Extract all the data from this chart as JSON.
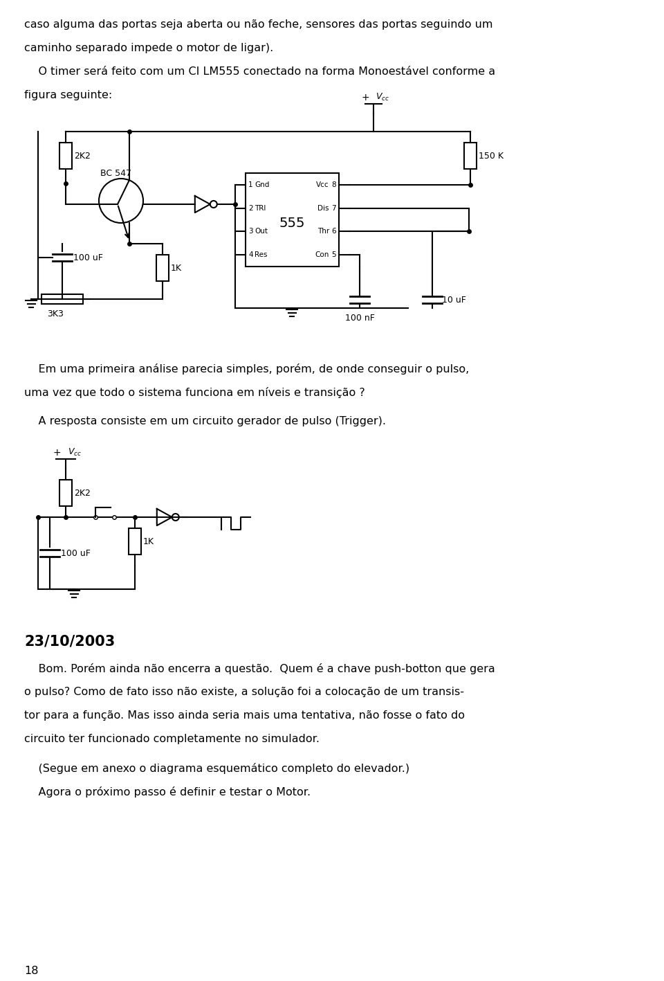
{
  "bg_color": "#ffffff",
  "text_color": "#000000",
  "font_mono": "Courier New",
  "page_width": 9.6,
  "page_height": 14.17,
  "line1": "caso alguma das portas seja aberta ou não feche, sensores das portas seguindo um",
  "line2": "caminho separado impede o motor de ligar).",
  "line3": "    O timer será feito com um CI LM555 conectado na forma Monoestável conforme a",
  "line4": "figura seguinte:",
  "para1_line1": "    Em uma primeira análise parecia simples, porém, de onde conseguir o pulso,",
  "para1_line2": "uma vez que todo o sistema funciona em níveis e transição ?",
  "para2": "    A resposta consiste em um circuito gerador de pulso (Trigger).",
  "date": "23/10/2003",
  "date_para1": "    Bom. Porém ainda não encerra a questão.  Quem é a chave push-botton que gera",
  "date_para2": "o pulso? Como de fato isso não existe, a solução foi a colocação de um transis-",
  "date_para3": "tor para a função. Mas isso ainda seria mais uma tentativa, não fosse o fato do",
  "date_para4": "circuito ter funcionado completamente no simulador.",
  "date_para5": "    (Segue em anexo o diagrama esquemático completo do elevador.)",
  "date_para6": "    Agora o próximo passo é definir e testar o Motor.",
  "page_num": "18"
}
